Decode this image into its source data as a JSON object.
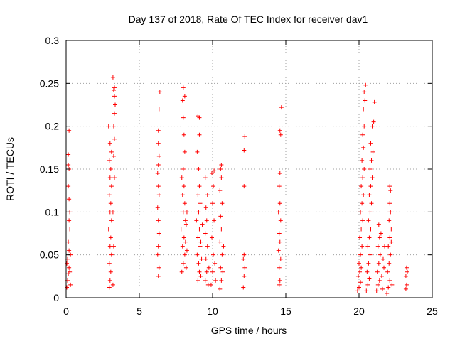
{
  "chart_data": {
    "type": "scatter",
    "title": "Day 137 of 2018, Rate Of TEC Index for receiver dav1",
    "xlabel": "GPS time / hours",
    "ylabel": "ROTI / TECUs",
    "xlim": [
      0,
      25
    ],
    "ylim": [
      0,
      0.3
    ],
    "x_ticks": [
      "0",
      "5",
      "10",
      "15",
      "20",
      "25"
    ],
    "y_ticks": [
      "0",
      "0.05",
      "0.1",
      "0.15",
      "0.2",
      "0.25",
      "0.3"
    ],
    "grid": true,
    "marker": "plus",
    "color": "#ff0000",
    "points": [
      [
        0.05,
        0.012
      ],
      [
        0.1,
        0.02
      ],
      [
        0.15,
        0.028
      ],
      [
        0.2,
        0.035
      ],
      [
        0.1,
        0.045
      ],
      [
        0.2,
        0.055
      ],
      [
        0.15,
        0.065
      ],
      [
        0.25,
        0.08
      ],
      [
        0.2,
        0.09
      ],
      [
        0.25,
        0.1
      ],
      [
        0.2,
        0.115
      ],
      [
        0.15,
        0.13
      ],
      [
        0.2,
        0.15
      ],
      [
        0.15,
        0.155
      ],
      [
        0.15,
        0.167
      ],
      [
        0.2,
        0.195
      ],
      [
        0.25,
        0.03
      ],
      [
        0.3,
        0.015
      ],
      [
        0.05,
        0.04
      ],
      [
        0.3,
        0.05
      ],
      [
        2.95,
        0.012
      ],
      [
        3.0,
        0.02
      ],
      [
        3.05,
        0.03
      ],
      [
        2.95,
        0.04
      ],
      [
        3.1,
        0.05
      ],
      [
        3.0,
        0.06
      ],
      [
        3.05,
        0.07
      ],
      [
        2.9,
        0.08
      ],
      [
        3.1,
        0.09
      ],
      [
        3.0,
        0.1
      ],
      [
        3.05,
        0.11
      ],
      [
        2.95,
        0.12
      ],
      [
        3.1,
        0.13
      ],
      [
        3.0,
        0.14
      ],
      [
        3.05,
        0.15
      ],
      [
        2.95,
        0.16
      ],
      [
        3.1,
        0.17
      ],
      [
        3.0,
        0.18
      ],
      [
        2.9,
        0.2
      ],
      [
        3.2,
        0.015
      ],
      [
        3.25,
        0.06
      ],
      [
        3.2,
        0.1
      ],
      [
        3.3,
        0.14
      ],
      [
        3.25,
        0.165
      ],
      [
        3.3,
        0.185
      ],
      [
        3.25,
        0.2
      ],
      [
        3.3,
        0.215
      ],
      [
        3.3,
        0.235
      ],
      [
        3.25,
        0.242
      ],
      [
        3.3,
        0.245
      ],
      [
        3.2,
        0.257
      ],
      [
        3.35,
        0.225
      ],
      [
        6.3,
        0.025
      ],
      [
        6.35,
        0.035
      ],
      [
        6.25,
        0.05
      ],
      [
        6.3,
        0.06
      ],
      [
        6.35,
        0.075
      ],
      [
        6.3,
        0.09
      ],
      [
        6.25,
        0.105
      ],
      [
        6.35,
        0.12
      ],
      [
        6.3,
        0.13
      ],
      [
        6.25,
        0.145
      ],
      [
        6.3,
        0.155
      ],
      [
        6.35,
        0.165
      ],
      [
        6.3,
        0.18
      ],
      [
        6.3,
        0.195
      ],
      [
        6.35,
        0.22
      ],
      [
        6.4,
        0.24
      ],
      [
        7.9,
        0.03
      ],
      [
        8.0,
        0.04
      ],
      [
        8.1,
        0.05
      ],
      [
        7.95,
        0.06
      ],
      [
        8.05,
        0.07
      ],
      [
        7.85,
        0.08
      ],
      [
        8.15,
        0.09
      ],
      [
        8.0,
        0.1
      ],
      [
        8.1,
        0.11
      ],
      [
        7.95,
        0.12
      ],
      [
        8.05,
        0.13
      ],
      [
        7.9,
        0.14
      ],
      [
        8.0,
        0.15
      ],
      [
        8.1,
        0.17
      ],
      [
        8.05,
        0.19
      ],
      [
        8.0,
        0.21
      ],
      [
        7.95,
        0.23
      ],
      [
        8.1,
        0.235
      ],
      [
        8.0,
        0.245
      ],
      [
        8.2,
        0.035
      ],
      [
        8.25,
        0.055
      ],
      [
        8.15,
        0.065
      ],
      [
        8.2,
        0.085
      ],
      [
        8.25,
        0.1
      ],
      [
        9.0,
        0.02
      ],
      [
        9.1,
        0.03
      ],
      [
        9.05,
        0.04
      ],
      [
        8.95,
        0.05
      ],
      [
        9.15,
        0.06
      ],
      [
        9.0,
        0.07
      ],
      [
        9.1,
        0.08
      ],
      [
        8.9,
        0.09
      ],
      [
        9.05,
        0.1
      ],
      [
        9.15,
        0.11
      ],
      [
        9.0,
        0.12
      ],
      [
        9.1,
        0.13
      ],
      [
        9.05,
        0.15
      ],
      [
        8.95,
        0.17
      ],
      [
        9.1,
        0.19
      ],
      [
        9.0,
        0.212
      ],
      [
        9.1,
        0.21
      ],
      [
        9.2,
        0.025
      ],
      [
        9.25,
        0.045
      ],
      [
        9.2,
        0.065
      ],
      [
        9.3,
        0.085
      ],
      [
        9.5,
        0.02
      ],
      [
        9.6,
        0.03
      ],
      [
        9.55,
        0.045
      ],
      [
        9.65,
        0.06
      ],
      [
        9.5,
        0.075
      ],
      [
        9.6,
        0.09
      ],
      [
        9.55,
        0.105
      ],
      [
        9.65,
        0.12
      ],
      [
        9.5,
        0.14
      ],
      [
        9.7,
        0.015
      ],
      [
        9.75,
        0.035
      ],
      [
        9.9,
        0.015
      ],
      [
        10.0,
        0.03
      ],
      [
        10.05,
        0.05
      ],
      [
        9.95,
        0.07
      ],
      [
        10.1,
        0.09
      ],
      [
        10.0,
        0.11
      ],
      [
        10.05,
        0.13
      ],
      [
        9.95,
        0.145
      ],
      [
        10.1,
        0.148
      ],
      [
        10.2,
        0.02
      ],
      [
        10.15,
        0.04
      ],
      [
        10.5,
        0.01
      ],
      [
        10.6,
        0.02
      ],
      [
        10.55,
        0.035
      ],
      [
        10.65,
        0.05
      ],
      [
        10.5,
        0.065
      ],
      [
        10.6,
        0.08
      ],
      [
        10.55,
        0.095
      ],
      [
        10.65,
        0.11
      ],
      [
        10.5,
        0.125
      ],
      [
        10.6,
        0.14
      ],
      [
        10.55,
        0.15
      ],
      [
        10.6,
        0.155
      ],
      [
        10.7,
        0.03
      ],
      [
        10.75,
        0.06
      ],
      [
        12.1,
        0.012
      ],
      [
        12.15,
        0.025
      ],
      [
        12.2,
        0.035
      ],
      [
        12.1,
        0.045
      ],
      [
        12.15,
        0.05
      ],
      [
        12.15,
        0.13
      ],
      [
        12.15,
        0.172
      ],
      [
        12.2,
        0.188
      ],
      [
        14.55,
        0.015
      ],
      [
        14.6,
        0.02
      ],
      [
        14.55,
        0.035
      ],
      [
        14.65,
        0.045
      ],
      [
        14.5,
        0.055
      ],
      [
        14.6,
        0.065
      ],
      [
        14.55,
        0.075
      ],
      [
        14.65,
        0.09
      ],
      [
        14.5,
        0.1
      ],
      [
        14.6,
        0.11
      ],
      [
        14.55,
        0.13
      ],
      [
        14.6,
        0.145
      ],
      [
        14.65,
        0.19
      ],
      [
        14.6,
        0.195
      ],
      [
        14.7,
        0.222
      ],
      [
        19.9,
        0.008
      ],
      [
        20.0,
        0.012
      ],
      [
        20.1,
        0.018
      ],
      [
        19.95,
        0.025
      ],
      [
        20.05,
        0.03
      ],
      [
        20.15,
        0.035
      ],
      [
        20.0,
        0.04
      ],
      [
        20.1,
        0.05
      ],
      [
        20.2,
        0.06
      ],
      [
        20.05,
        0.07
      ],
      [
        20.15,
        0.08
      ],
      [
        20.25,
        0.09
      ],
      [
        20.1,
        0.1
      ],
      [
        20.2,
        0.11
      ],
      [
        20.3,
        0.12
      ],
      [
        20.15,
        0.13
      ],
      [
        20.25,
        0.14
      ],
      [
        20.35,
        0.15
      ],
      [
        20.2,
        0.16
      ],
      [
        20.3,
        0.175
      ],
      [
        20.25,
        0.19
      ],
      [
        20.35,
        0.2
      ],
      [
        20.3,
        0.22
      ],
      [
        20.4,
        0.23
      ],
      [
        20.35,
        0.24
      ],
      [
        20.45,
        0.248
      ],
      [
        20.5,
        0.008
      ],
      [
        20.6,
        0.015
      ],
      [
        20.7,
        0.022
      ],
      [
        20.55,
        0.03
      ],
      [
        20.65,
        0.04
      ],
      [
        20.75,
        0.05
      ],
      [
        20.6,
        0.06
      ],
      [
        20.7,
        0.07
      ],
      [
        20.8,
        0.08
      ],
      [
        20.65,
        0.09
      ],
      [
        20.75,
        0.1
      ],
      [
        20.85,
        0.11
      ],
      [
        20.7,
        0.12
      ],
      [
        20.8,
        0.13
      ],
      [
        20.9,
        0.14
      ],
      [
        20.75,
        0.15
      ],
      [
        20.85,
        0.16
      ],
      [
        20.95,
        0.17
      ],
      [
        20.8,
        0.18
      ],
      [
        20.9,
        0.2
      ],
      [
        21.0,
        0.205
      ],
      [
        21.05,
        0.228
      ],
      [
        21.2,
        0.008
      ],
      [
        21.3,
        0.015
      ],
      [
        21.4,
        0.02
      ],
      [
        21.25,
        0.03
      ],
      [
        21.35,
        0.04
      ],
      [
        21.45,
        0.05
      ],
      [
        21.3,
        0.06
      ],
      [
        21.4,
        0.07
      ],
      [
        21.5,
        0.075
      ],
      [
        21.35,
        0.085
      ],
      [
        21.55,
        0.025
      ],
      [
        21.6,
        0.01
      ],
      [
        21.7,
        0.035
      ],
      [
        21.65,
        0.045
      ],
      [
        21.75,
        0.06
      ],
      [
        21.9,
        0.005
      ],
      [
        22.0,
        0.012
      ],
      [
        22.1,
        0.02
      ],
      [
        21.95,
        0.03
      ],
      [
        22.05,
        0.04
      ],
      [
        22.15,
        0.05
      ],
      [
        22.0,
        0.06
      ],
      [
        22.1,
        0.07
      ],
      [
        22.2,
        0.08
      ],
      [
        22.05,
        0.09
      ],
      [
        22.15,
        0.1
      ],
      [
        22.1,
        0.11
      ],
      [
        22.15,
        0.125
      ],
      [
        22.1,
        0.13
      ],
      [
        22.2,
        0.065
      ],
      [
        22.25,
        0.015
      ],
      [
        23.2,
        0.01
      ],
      [
        23.25,
        0.015
      ],
      [
        23.2,
        0.025
      ],
      [
        23.3,
        0.03
      ],
      [
        23.25,
        0.035
      ]
    ]
  }
}
